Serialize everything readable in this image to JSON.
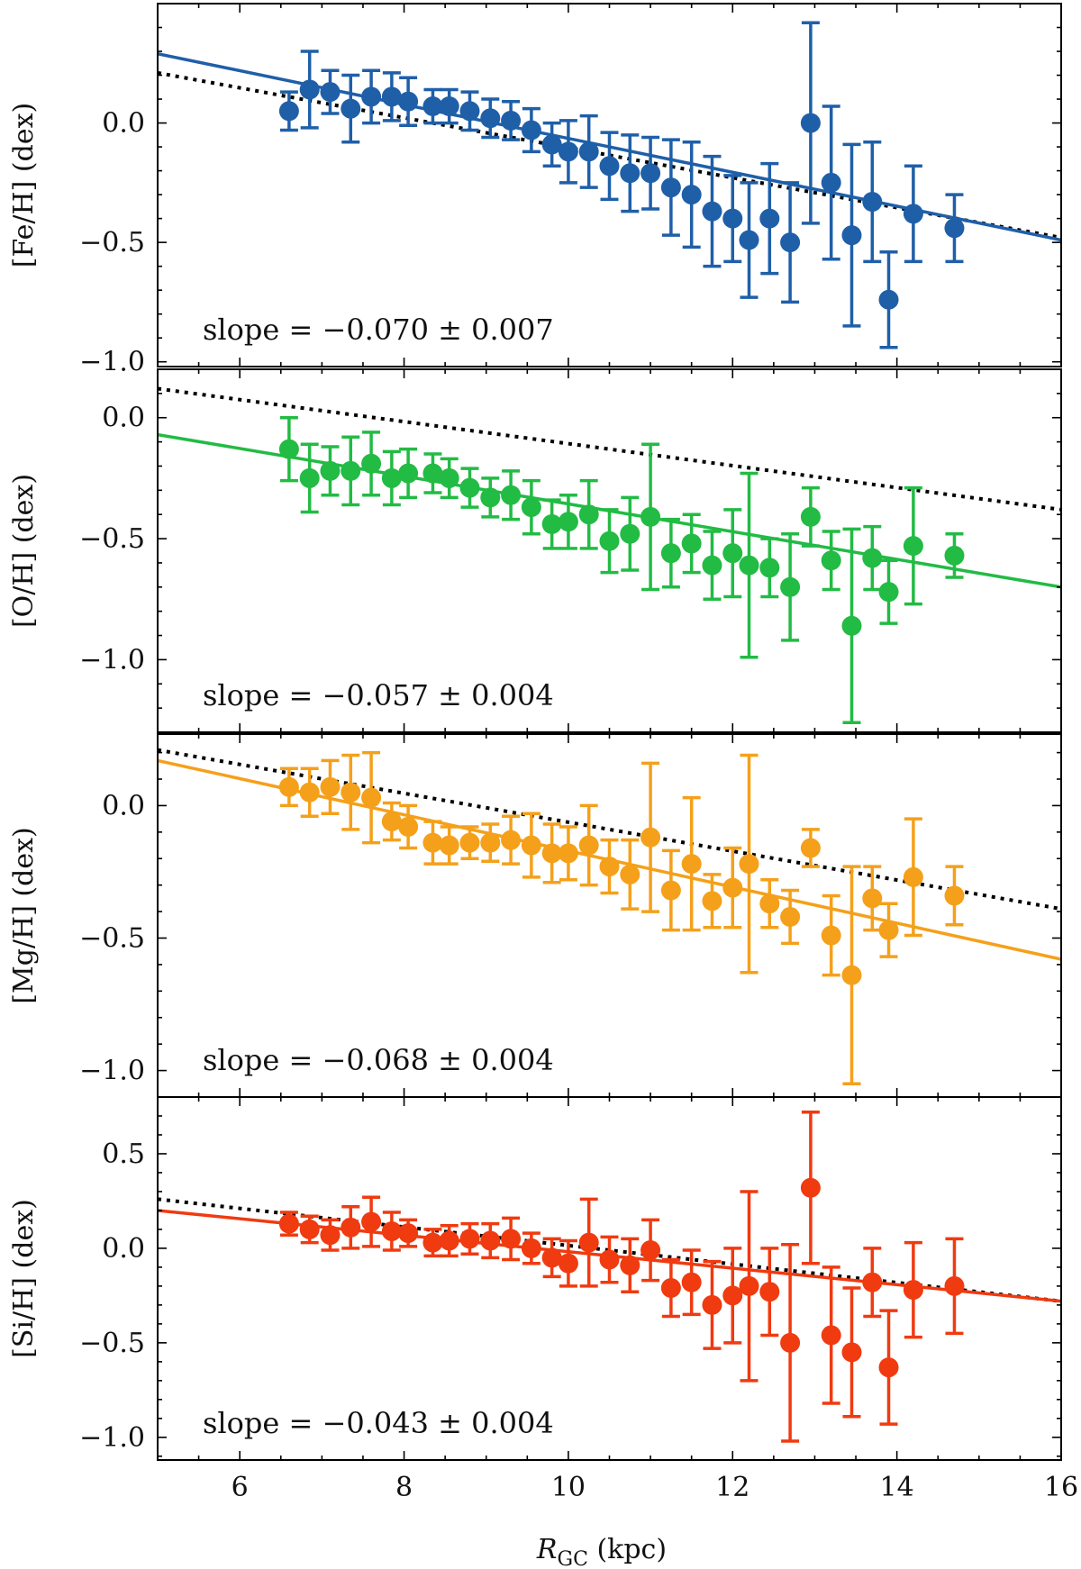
{
  "figure": {
    "xlabel_main": "R",
    "xlabel_sub": "GC",
    "xlabel_unit": " (kpc)",
    "xlim": [
      5,
      16
    ],
    "xticks": [
      6,
      8,
      10,
      12,
      14,
      16
    ],
    "x_tick_labels": [
      "6",
      "8",
      "10",
      "12",
      "14",
      "16"
    ],
    "reference_line_style": "black dotted"
  },
  "chart_data": [
    {
      "type": "scatter",
      "ylabel": "[Fe/H] (dex)",
      "ylim": [
        -1.02,
        0.5
      ],
      "yticks": [
        0.0,
        -0.5,
        -1.0
      ],
      "y_tick_labels": [
        "0.0",
        "−0.5",
        "−1.0"
      ],
      "color": "#1f5fa8",
      "slope_text": "slope = −0.070 ± 0.007",
      "fit_line": {
        "x": [
          5,
          16
        ],
        "y": [
          0.29,
          -0.49
        ]
      },
      "reference_line": {
        "x": [
          5,
          16
        ],
        "y": [
          0.21,
          -0.48
        ]
      },
      "points": [
        {
          "x": 6.6,
          "y": 0.05,
          "err": 0.08
        },
        {
          "x": 6.85,
          "y": 0.14,
          "err": 0.16
        },
        {
          "x": 7.1,
          "y": 0.13,
          "err": 0.09
        },
        {
          "x": 7.35,
          "y": 0.06,
          "err": 0.14
        },
        {
          "x": 7.6,
          "y": 0.11,
          "err": 0.11
        },
        {
          "x": 7.85,
          "y": 0.11,
          "err": 0.1
        },
        {
          "x": 8.05,
          "y": 0.09,
          "err": 0.1
        },
        {
          "x": 8.35,
          "y": 0.07,
          "err": 0.07
        },
        {
          "x": 8.55,
          "y": 0.07,
          "err": 0.07
        },
        {
          "x": 8.8,
          "y": 0.05,
          "err": 0.08
        },
        {
          "x": 9.05,
          "y": 0.02,
          "err": 0.08
        },
        {
          "x": 9.3,
          "y": 0.01,
          "err": 0.08
        },
        {
          "x": 9.55,
          "y": -0.03,
          "err": 0.09
        },
        {
          "x": 9.8,
          "y": -0.09,
          "err": 0.09
        },
        {
          "x": 10.0,
          "y": -0.12,
          "err": 0.13
        },
        {
          "x": 10.25,
          "y": -0.12,
          "err": 0.15
        },
        {
          "x": 10.5,
          "y": -0.18,
          "err": 0.14
        },
        {
          "x": 10.75,
          "y": -0.21,
          "err": 0.16
        },
        {
          "x": 11.0,
          "y": -0.21,
          "err": 0.15
        },
        {
          "x": 11.25,
          "y": -0.27,
          "err": 0.2
        },
        {
          "x": 11.5,
          "y": -0.3,
          "err": 0.22
        },
        {
          "x": 11.75,
          "y": -0.37,
          "err": 0.23
        },
        {
          "x": 12.0,
          "y": -0.4,
          "err": 0.18
        },
        {
          "x": 12.2,
          "y": -0.49,
          "err": 0.24
        },
        {
          "x": 12.45,
          "y": -0.4,
          "err": 0.23
        },
        {
          "x": 12.7,
          "y": -0.5,
          "err": 0.25
        },
        {
          "x": 12.95,
          "y": 0.0,
          "err": 0.42
        },
        {
          "x": 13.2,
          "y": -0.25,
          "err": 0.32
        },
        {
          "x": 13.45,
          "y": -0.47,
          "err": 0.38
        },
        {
          "x": 13.7,
          "y": -0.33,
          "err": 0.25
        },
        {
          "x": 13.9,
          "y": -0.74,
          "err": 0.2
        },
        {
          "x": 14.2,
          "y": -0.38,
          "err": 0.2
        },
        {
          "x": 14.7,
          "y": -0.44,
          "err": 0.14
        }
      ]
    },
    {
      "type": "scatter",
      "ylabel": "[O/H] (dex)",
      "ylim": [
        -1.3,
        0.2
      ],
      "yticks": [
        0.0,
        -0.5,
        -1.0
      ],
      "y_tick_labels": [
        "0.0",
        "−0.5",
        "−1.0"
      ],
      "color": "#22bb44",
      "slope_text": "slope = −0.057 ± 0.004",
      "fit_line": {
        "x": [
          5,
          16
        ],
        "y": [
          -0.07,
          -0.7
        ]
      },
      "reference_line": {
        "x": [
          5,
          16
        ],
        "y": [
          0.12,
          -0.38
        ]
      },
      "points": [
        {
          "x": 6.6,
          "y": -0.13,
          "err": 0.13
        },
        {
          "x": 6.85,
          "y": -0.25,
          "err": 0.14
        },
        {
          "x": 7.1,
          "y": -0.22,
          "err": 0.1
        },
        {
          "x": 7.35,
          "y": -0.22,
          "err": 0.14
        },
        {
          "x": 7.6,
          "y": -0.19,
          "err": 0.13
        },
        {
          "x": 7.85,
          "y": -0.25,
          "err": 0.11
        },
        {
          "x": 8.05,
          "y": -0.23,
          "err": 0.1
        },
        {
          "x": 8.35,
          "y": -0.23,
          "err": 0.08
        },
        {
          "x": 8.55,
          "y": -0.25,
          "err": 0.08
        },
        {
          "x": 8.8,
          "y": -0.29,
          "err": 0.08
        },
        {
          "x": 9.05,
          "y": -0.33,
          "err": 0.08
        },
        {
          "x": 9.3,
          "y": -0.32,
          "err": 0.1
        },
        {
          "x": 9.55,
          "y": -0.37,
          "err": 0.11
        },
        {
          "x": 9.8,
          "y": -0.44,
          "err": 0.1
        },
        {
          "x": 10.0,
          "y": -0.43,
          "err": 0.11
        },
        {
          "x": 10.25,
          "y": -0.4,
          "err": 0.14
        },
        {
          "x": 10.5,
          "y": -0.51,
          "err": 0.13
        },
        {
          "x": 10.75,
          "y": -0.48,
          "err": 0.15
        },
        {
          "x": 11.0,
          "y": -0.41,
          "err": 0.3
        },
        {
          "x": 11.25,
          "y": -0.56,
          "err": 0.14
        },
        {
          "x": 11.5,
          "y": -0.52,
          "err": 0.12
        },
        {
          "x": 11.75,
          "y": -0.61,
          "err": 0.14
        },
        {
          "x": 12.0,
          "y": -0.56,
          "err": 0.18
        },
        {
          "x": 12.2,
          "y": -0.61,
          "err": 0.38
        },
        {
          "x": 12.45,
          "y": -0.62,
          "err": 0.12
        },
        {
          "x": 12.7,
          "y": -0.7,
          "err": 0.22
        },
        {
          "x": 12.95,
          "y": -0.41,
          "err": 0.12
        },
        {
          "x": 13.2,
          "y": -0.59,
          "err": 0.12
        },
        {
          "x": 13.45,
          "y": -0.86,
          "err": 0.4
        },
        {
          "x": 13.7,
          "y": -0.58,
          "err": 0.13
        },
        {
          "x": 13.9,
          "y": -0.72,
          "err": 0.13
        },
        {
          "x": 14.2,
          "y": -0.53,
          "err": 0.24
        },
        {
          "x": 14.7,
          "y": -0.57,
          "err": 0.09
        }
      ]
    },
    {
      "type": "scatter",
      "ylabel": "[Mg/H] (dex)",
      "ylim": [
        -1.1,
        0.27
      ],
      "yticks": [
        0.0,
        -0.5,
        -1.0
      ],
      "y_tick_labels": [
        "0.0",
        "−0.5",
        "−1.0"
      ],
      "color": "#f5a01a",
      "slope_text": "slope = −0.068 ± 0.004",
      "fit_line": {
        "x": [
          5,
          16
        ],
        "y": [
          0.17,
          -0.58
        ]
      },
      "reference_line": {
        "x": [
          5,
          16
        ],
        "y": [
          0.21,
          -0.39
        ]
      },
      "points": [
        {
          "x": 6.6,
          "y": 0.07,
          "err": 0.07
        },
        {
          "x": 6.85,
          "y": 0.05,
          "err": 0.09
        },
        {
          "x": 7.1,
          "y": 0.07,
          "err": 0.1
        },
        {
          "x": 7.35,
          "y": 0.05,
          "err": 0.14
        },
        {
          "x": 7.6,
          "y": 0.03,
          "err": 0.17
        },
        {
          "x": 7.85,
          "y": -0.06,
          "err": 0.07
        },
        {
          "x": 8.05,
          "y": -0.08,
          "err": 0.08
        },
        {
          "x": 8.35,
          "y": -0.14,
          "err": 0.08
        },
        {
          "x": 8.55,
          "y": -0.15,
          "err": 0.07
        },
        {
          "x": 8.8,
          "y": -0.14,
          "err": 0.06
        },
        {
          "x": 9.05,
          "y": -0.14,
          "err": 0.07
        },
        {
          "x": 9.3,
          "y": -0.13,
          "err": 0.09
        },
        {
          "x": 9.55,
          "y": -0.15,
          "err": 0.12
        },
        {
          "x": 9.8,
          "y": -0.18,
          "err": 0.11
        },
        {
          "x": 10.0,
          "y": -0.18,
          "err": 0.1
        },
        {
          "x": 10.25,
          "y": -0.15,
          "err": 0.15
        },
        {
          "x": 10.5,
          "y": -0.23,
          "err": 0.1
        },
        {
          "x": 10.75,
          "y": -0.26,
          "err": 0.13
        },
        {
          "x": 11.0,
          "y": -0.12,
          "err": 0.28
        },
        {
          "x": 11.25,
          "y": -0.32,
          "err": 0.15
        },
        {
          "x": 11.5,
          "y": -0.22,
          "err": 0.25
        },
        {
          "x": 11.75,
          "y": -0.36,
          "err": 0.1
        },
        {
          "x": 12.0,
          "y": -0.31,
          "err": 0.15
        },
        {
          "x": 12.2,
          "y": -0.22,
          "err": 0.41
        },
        {
          "x": 12.45,
          "y": -0.37,
          "err": 0.09
        },
        {
          "x": 12.7,
          "y": -0.42,
          "err": 0.1
        },
        {
          "x": 12.95,
          "y": -0.16,
          "err": 0.07
        },
        {
          "x": 13.2,
          "y": -0.49,
          "err": 0.15
        },
        {
          "x": 13.45,
          "y": -0.64,
          "err": 0.41
        },
        {
          "x": 13.7,
          "y": -0.35,
          "err": 0.12
        },
        {
          "x": 13.9,
          "y": -0.47,
          "err": 0.1
        },
        {
          "x": 14.2,
          "y": -0.27,
          "err": 0.22
        },
        {
          "x": 14.7,
          "y": -0.34,
          "err": 0.11
        }
      ]
    },
    {
      "type": "scatter",
      "ylabel": "[Si/H] (dex)",
      "ylim": [
        -1.12,
        0.8
      ],
      "yticks": [
        0.5,
        0.0,
        -0.5,
        -1.0
      ],
      "y_tick_labels": [
        "0.5",
        "0.0",
        "−0.5",
        "−1.0"
      ],
      "color": "#f03a10",
      "slope_text": "slope = −0.043 ± 0.004",
      "fit_line": {
        "x": [
          5,
          16
        ],
        "y": [
          0.2,
          -0.28
        ]
      },
      "reference_line": {
        "x": [
          5,
          16
        ],
        "y": [
          0.26,
          -0.28
        ]
      },
      "points": [
        {
          "x": 6.6,
          "y": 0.13,
          "err": 0.06
        },
        {
          "x": 6.85,
          "y": 0.1,
          "err": 0.07
        },
        {
          "x": 7.1,
          "y": 0.07,
          "err": 0.08
        },
        {
          "x": 7.35,
          "y": 0.11,
          "err": 0.11
        },
        {
          "x": 7.6,
          "y": 0.14,
          "err": 0.13
        },
        {
          "x": 7.85,
          "y": 0.09,
          "err": 0.1
        },
        {
          "x": 8.05,
          "y": 0.08,
          "err": 0.07
        },
        {
          "x": 8.35,
          "y": 0.03,
          "err": 0.07
        },
        {
          "x": 8.55,
          "y": 0.04,
          "err": 0.08
        },
        {
          "x": 8.8,
          "y": 0.05,
          "err": 0.08
        },
        {
          "x": 9.05,
          "y": 0.04,
          "err": 0.09
        },
        {
          "x": 9.3,
          "y": 0.05,
          "err": 0.11
        },
        {
          "x": 9.55,
          "y": 0.0,
          "err": 0.08
        },
        {
          "x": 9.8,
          "y": -0.05,
          "err": 0.1
        },
        {
          "x": 10.0,
          "y": -0.08,
          "err": 0.12
        },
        {
          "x": 10.25,
          "y": 0.03,
          "err": 0.23
        },
        {
          "x": 10.5,
          "y": -0.06,
          "err": 0.12
        },
        {
          "x": 10.75,
          "y": -0.09,
          "err": 0.14
        },
        {
          "x": 11.0,
          "y": -0.01,
          "err": 0.16
        },
        {
          "x": 11.25,
          "y": -0.21,
          "err": 0.15
        },
        {
          "x": 11.5,
          "y": -0.18,
          "err": 0.17
        },
        {
          "x": 11.75,
          "y": -0.3,
          "err": 0.23
        },
        {
          "x": 12.0,
          "y": -0.25,
          "err": 0.25
        },
        {
          "x": 12.2,
          "y": -0.2,
          "err": 0.5
        },
        {
          "x": 12.45,
          "y": -0.23,
          "err": 0.23
        },
        {
          "x": 12.7,
          "y": -0.5,
          "err": 0.52
        },
        {
          "x": 12.95,
          "y": 0.32,
          "err": 0.4
        },
        {
          "x": 13.2,
          "y": -0.46,
          "err": 0.36
        },
        {
          "x": 13.45,
          "y": -0.55,
          "err": 0.34
        },
        {
          "x": 13.7,
          "y": -0.18,
          "err": 0.18
        },
        {
          "x": 13.9,
          "y": -0.63,
          "err": 0.3
        },
        {
          "x": 14.2,
          "y": -0.22,
          "err": 0.25
        },
        {
          "x": 14.7,
          "y": -0.2,
          "err": 0.25
        }
      ]
    }
  ]
}
